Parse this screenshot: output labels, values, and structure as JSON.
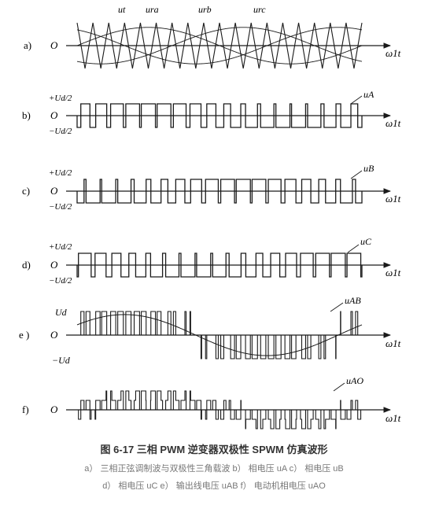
{
  "panels": [
    {
      "id": "a",
      "label": "a)",
      "origin": "O",
      "axis_label": "ω1t",
      "curve_labels": [
        "ut",
        "ura",
        "urb",
        "urc"
      ]
    },
    {
      "id": "b",
      "label": "b)",
      "origin": "O",
      "axis_label": "ω1t",
      "y_top": "+Ud/2",
      "y_bottom": "−Ud/2",
      "wave_label": "uA"
    },
    {
      "id": "c",
      "label": "c)",
      "origin": "O",
      "axis_label": "ω1t",
      "y_top": "+Ud/2",
      "y_bottom": "−Ud/2",
      "wave_label": "uB"
    },
    {
      "id": "d",
      "label": "d)",
      "origin": "O",
      "axis_label": "ω1t",
      "y_top": "+Ud/2",
      "y_bottom": "−Ud/2",
      "wave_label": "uC"
    },
    {
      "id": "e",
      "label": "e )",
      "origin": "O",
      "axis_label": "ω1t",
      "y_top": "Ud",
      "y_bottom": "−Ud",
      "wave_label": "uAB"
    },
    {
      "id": "f",
      "label": "f)",
      "origin": "O",
      "axis_label": "ω1t",
      "wave_label": "uAO"
    }
  ],
  "caption": {
    "title": "图 6-17   三相 PWM 逆变器双极性 SPWM 仿真波形",
    "line1": "a）  三相正弦调制波与双极性三角载波    b）  相电压 uA    c）  相电压 uB",
    "line2": "d）  相电压 uC    e）  输出线电压 uAB    f）  电动机相电压 uAO"
  },
  "colors": {
    "ink": "#1a1a1a",
    "caption_title": "#333333",
    "caption_sub": "#777777"
  }
}
